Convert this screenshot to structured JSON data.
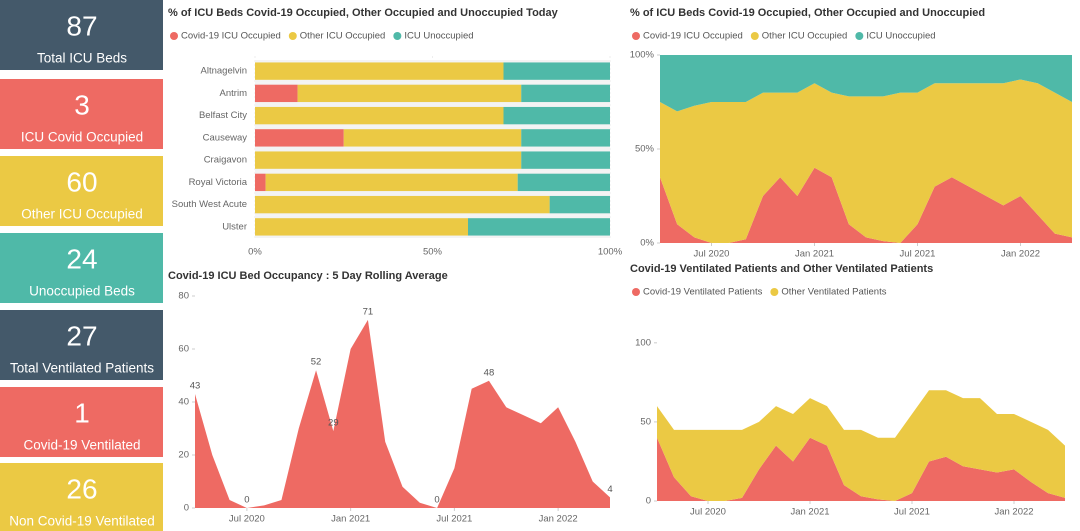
{
  "kpis": [
    {
      "value": 87,
      "label": "Total ICU Beds",
      "color": "#44596a"
    },
    {
      "value": 3,
      "label": "ICU Covid Occupied",
      "color": "#ee6a63"
    },
    {
      "value": 60,
      "label": "Other ICU Occupied",
      "color": "#ebc944"
    },
    {
      "value": 24,
      "label": "Unoccupied Beds",
      "color": "#4fb9a8"
    },
    {
      "value": 27,
      "label": "Total Ventilated Patients",
      "color": "#44596a"
    },
    {
      "value": 1,
      "label": "Covid-19 Ventilated",
      "color": "#ee6a63"
    },
    {
      "value": 26,
      "label": "Non Covid-19 Ventilated",
      "color": "#ebc944"
    }
  ],
  "chart_data": [
    {
      "type": "bar",
      "orientation": "horizontal",
      "stacked": true,
      "title": "% of ICU Beds Covid-19 Occupied, Other Occupied and Unoccupied Today",
      "categories": [
        "Altnagelvin",
        "Antrim",
        "Belfast City",
        "Causeway",
        "Craigavon",
        "Royal Victoria",
        "South West Acute",
        "Ulster"
      ],
      "series": [
        {
          "name": "Covid-19 ICU Occupied",
          "color": "#ee6a63",
          "values": [
            0,
            12,
            0,
            25,
            0,
            3,
            0,
            0
          ]
        },
        {
          "name": "Other ICU Occupied",
          "color": "#ebc944",
          "values": [
            70,
            63,
            70,
            50,
            75,
            71,
            83,
            60
          ]
        },
        {
          "name": "ICU Unoccupied",
          "color": "#4fb9a8",
          "values": [
            30,
            25,
            30,
            25,
            25,
            26,
            17,
            40
          ]
        }
      ],
      "xlim": [
        0,
        100
      ],
      "xticks": [
        {
          "value": 0,
          "label": "0%"
        },
        {
          "value": 50,
          "label": "50%"
        },
        {
          "value": 100,
          "label": "100%"
        }
      ]
    },
    {
      "type": "area",
      "stacked": true,
      "title": "% of ICU Beds Covid-19 Occupied, Other Occupied and Unoccupied",
      "x": [
        "2020-04",
        "2020-05",
        "2020-06",
        "2020-07",
        "2020-08",
        "2020-09",
        "2020-10",
        "2020-11",
        "2020-12",
        "2021-01",
        "2021-02",
        "2021-03",
        "2021-04",
        "2021-05",
        "2021-06",
        "2021-07",
        "2021-08",
        "2021-09",
        "2021-10",
        "2021-11",
        "2021-12",
        "2022-01",
        "2022-02",
        "2022-03",
        "2022-04"
      ],
      "series": [
        {
          "name": "Covid-19 ICU Occupied",
          "color": "#ee6a63",
          "values": [
            35,
            10,
            3,
            0,
            0,
            2,
            25,
            35,
            25,
            40,
            35,
            10,
            3,
            1,
            0,
            10,
            30,
            35,
            30,
            25,
            20,
            25,
            15,
            5,
            3
          ]
        },
        {
          "name": "Other ICU Occupied",
          "color": "#ebc944",
          "values": [
            40,
            60,
            70,
            75,
            75,
            73,
            55,
            45,
            55,
            45,
            45,
            68,
            75,
            77,
            80,
            70,
            55,
            50,
            55,
            60,
            65,
            62,
            70,
            75,
            72
          ]
        },
        {
          "name": "ICU Unoccupied",
          "color": "#4fb9a8",
          "values": [
            25,
            30,
            27,
            25,
            25,
            25,
            20,
            20,
            20,
            15,
            20,
            22,
            22,
            22,
            20,
            20,
            15,
            15,
            15,
            15,
            15,
            13,
            15,
            20,
            25
          ]
        }
      ],
      "xlim": [
        "2020-04",
        "2022-04"
      ],
      "xticks": [
        {
          "value": "2020-07",
          "label": "Jul 2020"
        },
        {
          "value": "2021-01",
          "label": "Jan 2021"
        },
        {
          "value": "2021-07",
          "label": "Jul 2021"
        },
        {
          "value": "2022-01",
          "label": "Jan 2022"
        }
      ],
      "ylim": [
        0,
        100
      ],
      "yticks": [
        {
          "value": 0,
          "label": "0%"
        },
        {
          "value": 50,
          "label": "50%"
        },
        {
          "value": 100,
          "label": "100%"
        }
      ]
    },
    {
      "type": "area",
      "title": "Covid-19 ICU Bed Occupancy : 5 Day Rolling Average",
      "x": [
        "2020-04",
        "2020-05",
        "2020-06",
        "2020-07",
        "2020-08",
        "2020-09",
        "2020-10",
        "2020-11",
        "2020-12",
        "2021-01",
        "2021-02",
        "2021-03",
        "2021-04",
        "2021-05",
        "2021-06",
        "2021-07",
        "2021-08",
        "2021-09",
        "2021-10",
        "2021-11",
        "2021-12",
        "2022-01",
        "2022-02",
        "2022-03",
        "2022-04"
      ],
      "values": [
        43,
        20,
        3,
        0,
        1,
        3,
        30,
        52,
        29,
        60,
        71,
        25,
        8,
        2,
        0,
        15,
        45,
        48,
        38,
        35,
        32,
        38,
        25,
        10,
        4
      ],
      "value_labels": [
        "43",
        null,
        null,
        "0",
        null,
        null,
        null,
        "52",
        "29",
        null,
        "71",
        null,
        null,
        null,
        "0",
        null,
        null,
        "48",
        null,
        null,
        null,
        null,
        null,
        null,
        "4"
      ],
      "color": "#ee6a63",
      "xlim": [
        "2020-04",
        "2022-04"
      ],
      "xticks": [
        {
          "value": "2020-07",
          "label": "Jul 2020"
        },
        {
          "value": "2021-01",
          "label": "Jan 2021"
        },
        {
          "value": "2021-07",
          "label": "Jul 2021"
        },
        {
          "value": "2022-01",
          "label": "Jan 2022"
        }
      ],
      "ylim": [
        0,
        80
      ],
      "yticks": [
        0,
        20,
        40,
        60,
        80
      ]
    },
    {
      "type": "area",
      "stacked": true,
      "title": "Covid-19 Ventilated Patients and Other Ventilated Patients",
      "x": [
        "2020-04",
        "2020-05",
        "2020-06",
        "2020-07",
        "2020-08",
        "2020-09",
        "2020-10",
        "2020-11",
        "2020-12",
        "2021-01",
        "2021-02",
        "2021-03",
        "2021-04",
        "2021-05",
        "2021-06",
        "2021-07",
        "2021-08",
        "2021-09",
        "2021-10",
        "2021-11",
        "2021-12",
        "2022-01",
        "2022-02",
        "2022-03",
        "2022-04"
      ],
      "series": [
        {
          "name": "Covid-19 Ventilated Patients",
          "color": "#ee6a63",
          "values": [
            40,
            15,
            3,
            0,
            0,
            2,
            20,
            35,
            25,
            40,
            35,
            10,
            3,
            1,
            0,
            5,
            25,
            28,
            22,
            20,
            18,
            20,
            12,
            5,
            2
          ]
        },
        {
          "name": "Other Ventilated Patients",
          "color": "#ebc944",
          "values": [
            20,
            30,
            42,
            45,
            45,
            43,
            30,
            25,
            30,
            25,
            25,
            35,
            42,
            39,
            40,
            50,
            45,
            42,
            43,
            45,
            37,
            35,
            38,
            40,
            33
          ]
        }
      ],
      "xlim": [
        "2020-04",
        "2022-04"
      ],
      "xticks": [
        {
          "value": "2020-07",
          "label": "Jul 2020"
        },
        {
          "value": "2021-01",
          "label": "Jan 2021"
        },
        {
          "value": "2021-07",
          "label": "Jul 2021"
        },
        {
          "value": "2022-01",
          "label": "Jan 2022"
        }
      ],
      "ylim": [
        0,
        110
      ],
      "yticks": [
        0,
        50,
        100
      ]
    }
  ]
}
